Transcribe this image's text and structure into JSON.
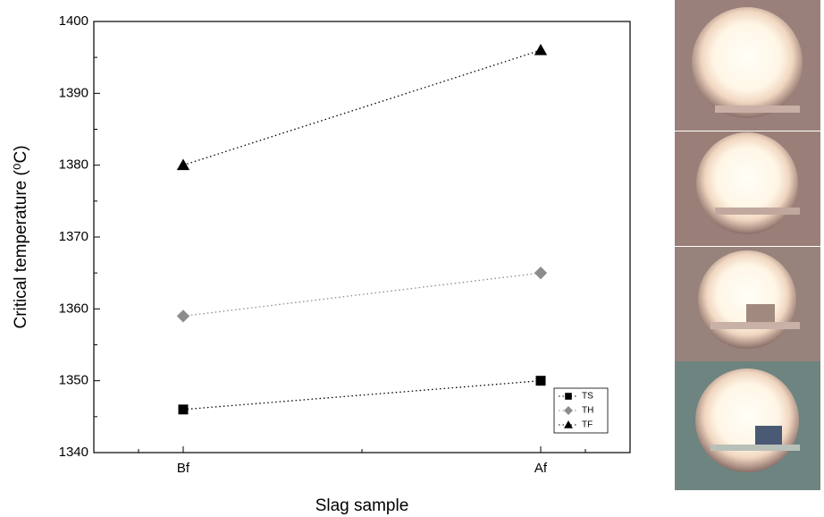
{
  "chart_data": {
    "type": "line",
    "x_label": "Slag sample",
    "y_label": "Critical temperature (⁰C)",
    "categories": [
      "Bf",
      "Af"
    ],
    "series": [
      {
        "name": "TS",
        "color": "#000000",
        "marker": "square",
        "values": [
          1346,
          1350
        ]
      },
      {
        "name": "TH",
        "color": "#8c8c8c",
        "marker": "diamond",
        "values": [
          1359,
          1365
        ]
      },
      {
        "name": "TF",
        "color": "#000000",
        "marker": "triangle",
        "values": [
          1380,
          1396
        ]
      }
    ],
    "ylim": [
      1340,
      1400
    ],
    "yticks": [
      1340,
      1350,
      1360,
      1370,
      1380,
      1390,
      1400
    ],
    "line_style": "dotted",
    "legend": "lower right"
  }
}
